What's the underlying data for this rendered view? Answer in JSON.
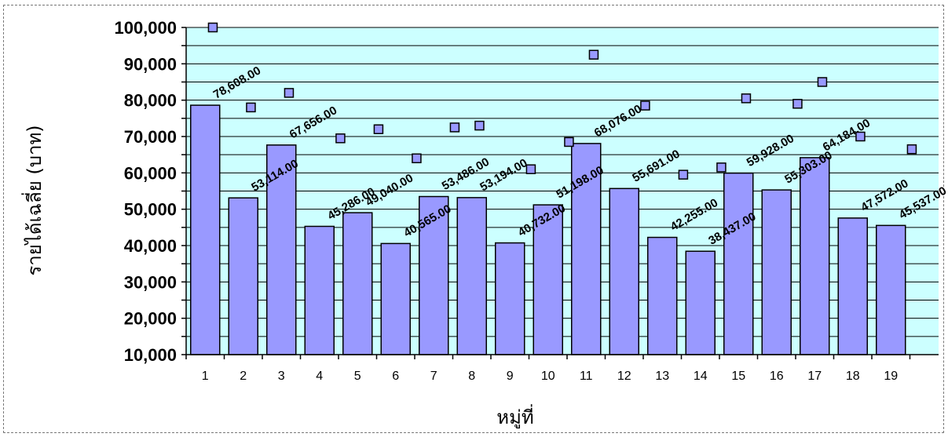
{
  "chart_data": {
    "type": "bar",
    "categories": [
      "1",
      "2",
      "3",
      "4",
      "5",
      "6",
      "7",
      "8",
      "9",
      "10",
      "11",
      "12",
      "13",
      "14",
      "15",
      "16",
      "17",
      "18",
      "19"
    ],
    "series": [
      {
        "values": [
          78608,
          53114,
          67656,
          45286,
          49040,
          40565,
          53486,
          53194,
          40732,
          51198,
          68076,
          55691,
          42255,
          38437,
          59928,
          55303,
          64184,
          47572,
          45537
        ],
        "data_labels": [
          "78,608.00",
          "53,114.00",
          "67,656.00",
          "45,286.00",
          "49,040.00",
          "40,565.00",
          "53,486.00",
          "53,194.00",
          "40,732.00",
          "51,198.00",
          "68,076.00",
          "55,691.00",
          "42,255.00",
          "38,437.00",
          "59,928.00",
          "55,303.00",
          "64,184.00",
          "47,572.00",
          "45,537.00"
        ]
      },
      {
        "type": "scatter",
        "x": [
          1,
          2,
          3,
          4,
          5,
          6,
          7,
          8,
          9,
          10,
          11,
          12,
          13,
          14,
          15,
          16,
          17,
          18,
          19
        ],
        "values": [
          100000,
          78000,
          82000,
          69500,
          72000,
          64000,
          72500,
          73000,
          61000,
          68500,
          92500,
          78500,
          59500,
          61500,
          80500,
          79000,
          85000,
          70000,
          66500
        ],
        "x_offsets": [
          0.33,
          0.33,
          0.33,
          0.67,
          0.67,
          0.67,
          0.67,
          0.33,
          0.67,
          0.67,
          0.33,
          0.67,
          0.67,
          0.67,
          0.33,
          0.67,
          0.33,
          0.33,
          0.67
        ]
      }
    ],
    "xlabel": "หมู่ที่",
    "ylabel": "รายได้เฉลี่ย (บาท)",
    "ylim": [
      10000,
      100000
    ],
    "yticks": [
      10000,
      20000,
      30000,
      40000,
      50000,
      60000,
      70000,
      80000,
      90000,
      100000
    ],
    "ytick_labels": [
      "10,000",
      "20,000",
      "30,000",
      "40,000",
      "50,000",
      "60,000",
      "70,000",
      "80,000",
      "90,000",
      "100,000"
    ],
    "grid": true,
    "legend": "none",
    "colors": {
      "plot_background": "#ccffff",
      "bar_fill": "#9999ff",
      "bar_stroke": "#000000",
      "marker_fill": "#9999ff",
      "gridline": "#000000"
    }
  }
}
